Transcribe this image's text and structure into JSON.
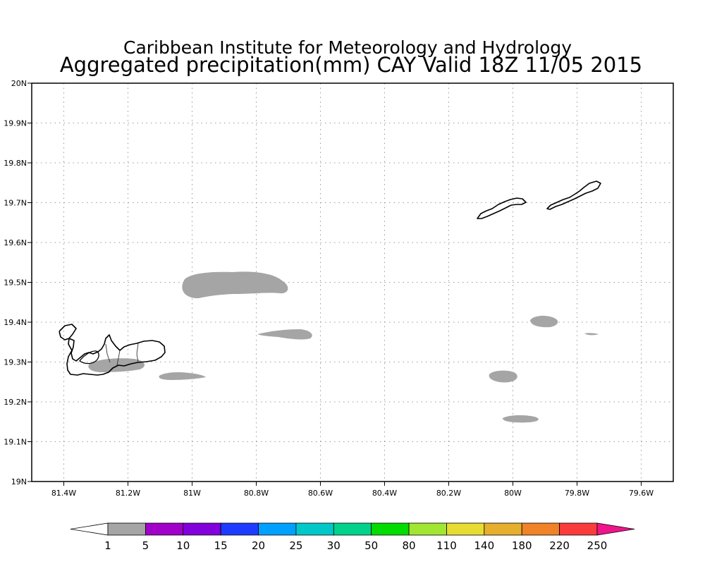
{
  "title": {
    "line1": "Caribbean Institute for Meteorology and Hydrology",
    "line2": "Aggregated precipitation(mm) CAY Valid 18Z 11/05 2015"
  },
  "map": {
    "lon_range": [
      -81.5,
      -79.5
    ],
    "lat_range": [
      19.0,
      20.0
    ],
    "x_ticks": [
      {
        "lon": -81.4,
        "label": "81.4W"
      },
      {
        "lon": -81.2,
        "label": "81.2W"
      },
      {
        "lon": -81.0,
        "label": "81W"
      },
      {
        "lon": -80.8,
        "label": "80.8W"
      },
      {
        "lon": -80.6,
        "label": "80.6W"
      },
      {
        "lon": -80.4,
        "label": "80.4W"
      },
      {
        "lon": -80.2,
        "label": "80.2W"
      },
      {
        "lon": -80.0,
        "label": "80W"
      },
      {
        "lon": -79.8,
        "label": "79.8W"
      },
      {
        "lon": -79.6,
        "label": "79.6W"
      }
    ],
    "y_ticks": [
      {
        "lat": 19.0,
        "label": "19N"
      },
      {
        "lat": 19.1,
        "label": "19.1N"
      },
      {
        "lat": 19.2,
        "label": "19.2N"
      },
      {
        "lat": 19.3,
        "label": "19.3N"
      },
      {
        "lat": 19.4,
        "label": "19.4N"
      },
      {
        "lat": 19.5,
        "label": "19.5N"
      },
      {
        "lat": 19.6,
        "label": "19.6N"
      },
      {
        "lat": 19.7,
        "label": "19.7N"
      },
      {
        "lat": 19.8,
        "label": "19.8N"
      },
      {
        "lat": 19.9,
        "label": "19.9N"
      },
      {
        "lat": 20.0,
        "label": "20N"
      }
    ],
    "grid": true
  },
  "legend": {
    "boundaries": [
      "1",
      "5",
      "10",
      "15",
      "20",
      "25",
      "30",
      "50",
      "80",
      "110",
      "140",
      "180",
      "220",
      "250"
    ],
    "colors": [
      "#a5a5a5",
      "#a000c8",
      "#8200dc",
      "#1e3cff",
      "#00a0ff",
      "#00c8c8",
      "#00d28c",
      "#00dc00",
      "#a0e632",
      "#e6dc32",
      "#e6af2d",
      "#f08228",
      "#fa3c3c"
    ],
    "below_color": "#ffffff",
    "above_color": "#f0148c"
  },
  "colors": {
    "precip_1_5": "#a5a5a5",
    "coastline": "#000000"
  }
}
